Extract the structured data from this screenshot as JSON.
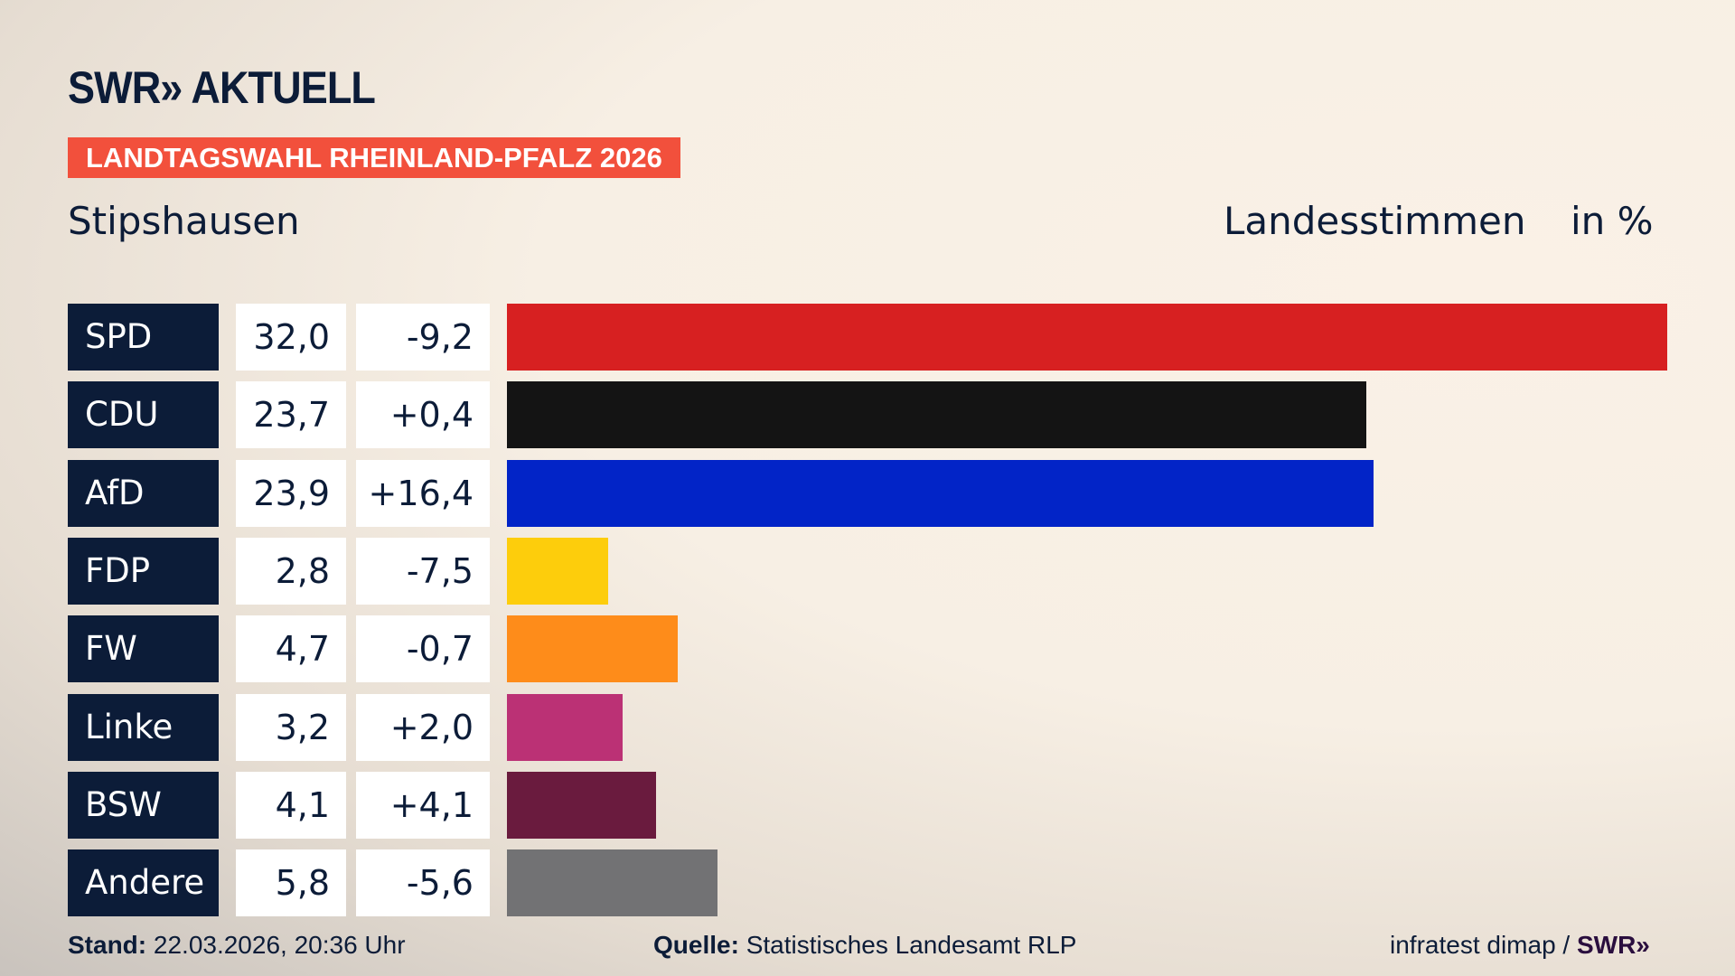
{
  "header": {
    "logo": "SWR» AKTUELL",
    "badge": "LANDTAGSWAHL RHEINLAND-PFALZ 2026",
    "place": "Stipshausen",
    "measure": "Landesstimmen",
    "unit": "in %"
  },
  "chart_data": {
    "type": "bar",
    "orientation": "horizontal",
    "categories": [
      "SPD",
      "CDU",
      "AfD",
      "FDP",
      "FW",
      "Linke",
      "BSW",
      "Andere"
    ],
    "values": [
      32.0,
      23.7,
      23.9,
      2.8,
      4.7,
      3.2,
      4.1,
      5.8
    ],
    "value_labels": [
      "32,0",
      "23,7",
      "23,9",
      "2,8",
      "4,7",
      "3,2",
      "4,1",
      "5,8"
    ],
    "diff_labels": [
      "-9,2",
      "+0,4",
      "+16,4",
      "-7,5",
      "-0,7",
      "+2,0",
      "+4,1",
      "-5,6"
    ],
    "colors": [
      "#d72021",
      "#141414",
      "#0224c7",
      "#fdcd0c",
      "#fe8c1a",
      "#bb3175",
      "#6a1b3e",
      "#727274"
    ],
    "xlim": [
      0,
      32.0
    ]
  },
  "footer": {
    "stand_label": "Stand:",
    "stand_value": " 22.03.2026, 20:36 Uhr",
    "source_label": "Quelle:",
    "source_value": " Statistisches Landesamt RLP",
    "credit": "infratest dimap / ",
    "credit_logo": "SWR»"
  }
}
